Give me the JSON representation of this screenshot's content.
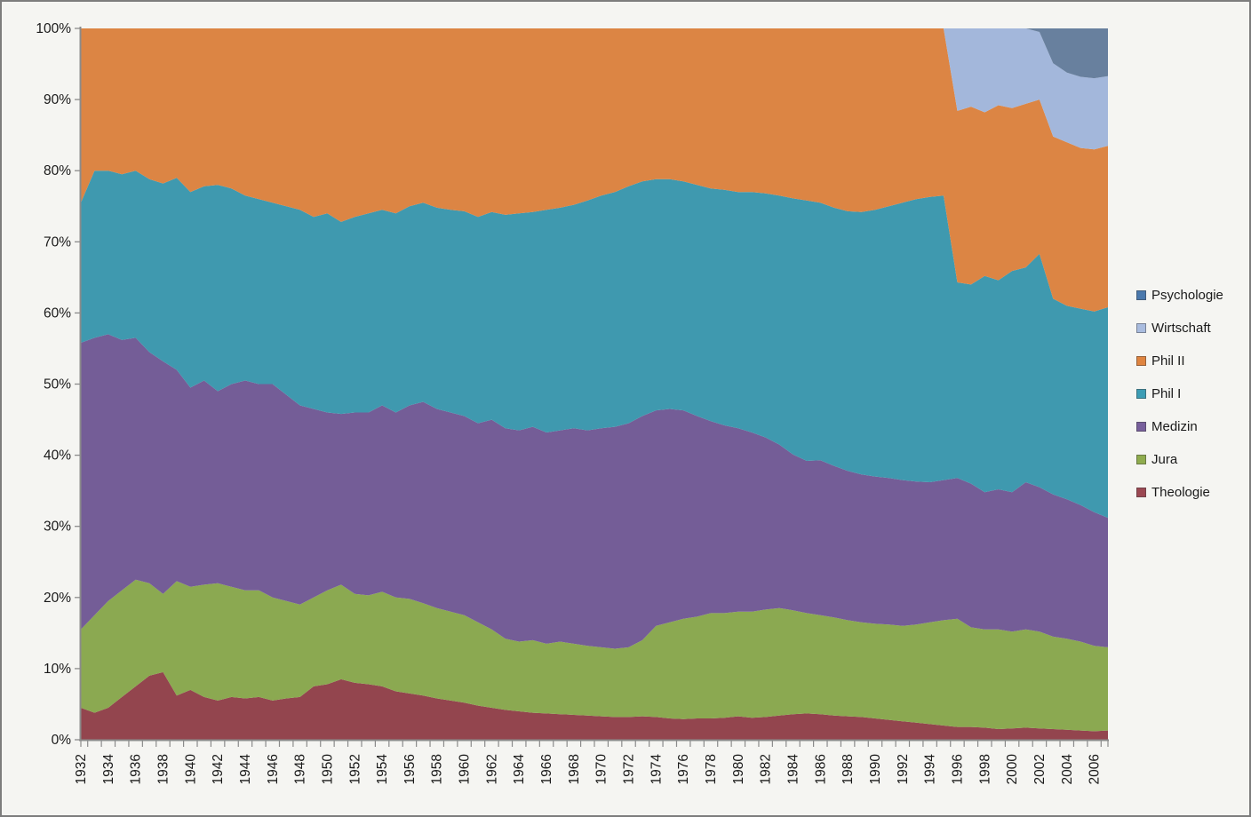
{
  "window": {
    "background": "#F5F5F2",
    "border_color": "#7D7D7D"
  },
  "chart_data": {
    "type": "area",
    "variant": "100%-stacked-area",
    "title": "",
    "xlabel": "",
    "ylabel": "",
    "grid": false,
    "legend_position": "right",
    "x_axis": {
      "range": [
        1932,
        2007
      ],
      "tick_years": [
        "1932",
        "1934",
        "1936",
        "1938",
        "1940",
        "1942",
        "1944",
        "1946",
        "1948",
        "1950",
        "1952",
        "1954",
        "1956",
        "1958",
        "1960",
        "1962",
        "1964",
        "1966",
        "1968",
        "1970",
        "1972",
        "1974",
        "1976",
        "1978",
        "1980",
        "1982",
        "1984",
        "1986",
        "1988",
        "1990",
        "1992",
        "1994",
        "1996",
        "1998",
        "2000",
        "2002",
        "2004",
        "2006"
      ]
    },
    "y_axis": {
      "range": [
        0,
        100
      ],
      "unit": "%",
      "ticks": [
        "0%",
        "10%",
        "20%",
        "30%",
        "40%",
        "50%",
        "60%",
        "70%",
        "80%",
        "90%",
        "100%"
      ]
    },
    "years": [
      1932,
      1933,
      1934,
      1935,
      1936,
      1937,
      1938,
      1939,
      1940,
      1941,
      1942,
      1943,
      1944,
      1945,
      1946,
      1947,
      1948,
      1949,
      1950,
      1951,
      1952,
      1953,
      1954,
      1955,
      1956,
      1957,
      1958,
      1959,
      1960,
      1961,
      1962,
      1963,
      1964,
      1965,
      1966,
      1967,
      1968,
      1969,
      1970,
      1971,
      1972,
      1973,
      1974,
      1975,
      1976,
      1977,
      1978,
      1979,
      1980,
      1981,
      1982,
      1983,
      1984,
      1985,
      1986,
      1987,
      1988,
      1989,
      1990,
      1991,
      1992,
      1993,
      1994,
      1995,
      1996,
      1997,
      1998,
      1999,
      2000,
      2001,
      2002,
      2003,
      2004,
      2005,
      2006,
      2007
    ],
    "series": [
      {
        "name": "Theologie",
        "color": "#93454E",
        "values": [
          4.5,
          3.8,
          4.5,
          6.0,
          7.5,
          9.0,
          9.5,
          6.2,
          7.0,
          6.0,
          5.5,
          6.0,
          5.8,
          6.0,
          5.5,
          5.8,
          6.0,
          7.5,
          7.8,
          8.5,
          8.0,
          7.8,
          7.5,
          6.8,
          6.5,
          6.2,
          5.8,
          5.5,
          5.2,
          4.8,
          4.5,
          4.2,
          4.0,
          3.8,
          3.7,
          3.6,
          3.5,
          3.4,
          3.3,
          3.2,
          3.2,
          3.3,
          3.2,
          3.0,
          2.9,
          3.0,
          3.0,
          3.1,
          3.3,
          3.1,
          3.2,
          3.4,
          3.6,
          3.7,
          3.6,
          3.4,
          3.3,
          3.2,
          3.0,
          2.8,
          2.6,
          2.4,
          2.2,
          2.0,
          1.8,
          1.8,
          1.7,
          1.5,
          1.6,
          1.7,
          1.6,
          1.5,
          1.4,
          1.3,
          1.2,
          1.3
        ]
      },
      {
        "name": "Jura",
        "color": "#8BA951",
        "values": [
          11.0,
          13.7,
          15.0,
          15.0,
          15.0,
          13.0,
          11.0,
          16.1,
          14.5,
          15.8,
          16.5,
          15.5,
          15.2,
          15.0,
          14.5,
          13.7,
          13.0,
          12.5,
          13.2,
          13.3,
          12.5,
          12.5,
          13.3,
          13.2,
          13.3,
          13.0,
          12.7,
          12.5,
          12.3,
          11.7,
          11.0,
          10.0,
          9.8,
          10.2,
          9.8,
          10.2,
          10.0,
          9.8,
          9.7,
          9.6,
          9.8,
          10.7,
          12.8,
          13.5,
          14.1,
          14.3,
          14.8,
          14.7,
          14.7,
          14.9,
          15.1,
          15.1,
          14.6,
          14.1,
          13.9,
          13.8,
          13.5,
          13.3,
          13.3,
          13.4,
          13.4,
          13.8,
          14.3,
          14.8,
          15.2,
          14.0,
          13.8,
          14.0,
          13.6,
          13.8,
          13.6,
          13.0,
          12.8,
          12.5,
          12.0,
          11.7
        ]
      },
      {
        "name": "Medizin",
        "color": "#745D97",
        "values": [
          40.3,
          39.0,
          37.5,
          35.2,
          34.0,
          32.5,
          32.7,
          29.7,
          28.0,
          28.7,
          27.0,
          28.5,
          29.5,
          29.0,
          30.0,
          29.0,
          28.0,
          26.5,
          25.0,
          24.0,
          25.5,
          25.7,
          26.2,
          26.0,
          27.2,
          28.3,
          28.0,
          28.0,
          28.0,
          28.0,
          29.5,
          29.6,
          29.7,
          30.0,
          29.7,
          29.7,
          30.3,
          30.3,
          30.8,
          31.2,
          31.5,
          31.5,
          30.3,
          30.0,
          29.3,
          28.2,
          27.0,
          26.4,
          25.8,
          25.2,
          24.2,
          23.0,
          21.9,
          21.4,
          21.8,
          21.3,
          21.0,
          20.8,
          20.7,
          20.6,
          20.5,
          20.1,
          19.7,
          19.7,
          19.8,
          20.2,
          19.3,
          19.7,
          19.6,
          20.7,
          20.3,
          20.0,
          19.6,
          19.2,
          18.8,
          18.2
        ]
      },
      {
        "name": "Phil I",
        "color": "#3F99AF",
        "values": [
          19.7,
          23.5,
          23.0,
          23.3,
          23.5,
          24.3,
          25.0,
          27.0,
          27.5,
          27.3,
          29.0,
          27.5,
          26.0,
          26.0,
          25.5,
          26.5,
          27.5,
          27.0,
          28.0,
          27.0,
          27.5,
          28.0,
          27.5,
          28.0,
          28.0,
          28.0,
          28.3,
          28.5,
          28.8,
          29.0,
          29.2,
          30.0,
          30.5,
          30.2,
          31.3,
          31.3,
          31.4,
          32.3,
          32.7,
          33.0,
          33.3,
          33.0,
          32.5,
          32.3,
          32.2,
          32.5,
          32.7,
          33.1,
          33.2,
          33.8,
          34.3,
          35.0,
          36.0,
          36.6,
          36.2,
          36.3,
          36.5,
          36.9,
          37.5,
          38.2,
          39.0,
          39.7,
          40.1,
          40.0,
          27.5,
          28.0,
          30.4,
          29.4,
          31.1,
          30.2,
          32.8,
          27.5,
          27.2,
          27.6,
          28.2,
          29.6
        ]
      },
      {
        "name": "Phil II",
        "color": "#DC8544",
        "values": [
          24.5,
          20.0,
          20.0,
          20.5,
          20.0,
          21.2,
          21.8,
          21.0,
          23.0,
          22.2,
          22.0,
          22.5,
          23.5,
          24.0,
          24.5,
          25.0,
          25.5,
          26.5,
          26.0,
          27.2,
          26.5,
          26.0,
          25.5,
          26.0,
          25.0,
          24.5,
          25.2,
          25.5,
          25.7,
          26.5,
          25.8,
          26.2,
          26.0,
          25.8,
          25.5,
          25.2,
          24.8,
          24.2,
          23.5,
          23.0,
          22.2,
          21.5,
          21.2,
          21.2,
          21.5,
          22.0,
          22.5,
          22.7,
          23.0,
          23.0,
          23.2,
          23.5,
          23.9,
          24.2,
          24.5,
          25.2,
          25.7,
          25.8,
          25.5,
          25.0,
          24.5,
          24.0,
          23.7,
          23.5,
          24.1,
          25.0,
          23.0,
          24.6,
          22.9,
          23.0,
          21.7,
          22.8,
          23.0,
          22.6,
          22.8,
          22.7
        ]
      },
      {
        "name": "Wirtschaft",
        "color": "#A3B7DB",
        "values": [
          0,
          0,
          0,
          0,
          0,
          0,
          0,
          0,
          0,
          0,
          0,
          0,
          0,
          0,
          0,
          0,
          0,
          0,
          0,
          0,
          0,
          0,
          0,
          0,
          0,
          0,
          0,
          0,
          0,
          0,
          0,
          0,
          0,
          0,
          0,
          0,
          0,
          0,
          0,
          0,
          0,
          0,
          0,
          0,
          0,
          0,
          0,
          0,
          0,
          0,
          0,
          0,
          0,
          0,
          0,
          0,
          0,
          0,
          0,
          0,
          0,
          0,
          0,
          0,
          11.6,
          11.0,
          11.8,
          10.8,
          11.2,
          10.6,
          9.5,
          10.3,
          9.8,
          10.0,
          10.0,
          9.8
        ]
      },
      {
        "name": "Psychologie",
        "color": "#68809E",
        "values": [
          0,
          0,
          0,
          0,
          0,
          0,
          0,
          0,
          0,
          0,
          0,
          0,
          0,
          0,
          0,
          0,
          0,
          0,
          0,
          0,
          0,
          0,
          0,
          0,
          0,
          0,
          0,
          0,
          0,
          0,
          0,
          0,
          0,
          0,
          0,
          0,
          0,
          0,
          0,
          0,
          0,
          0,
          0,
          0,
          0,
          0,
          0,
          0,
          0,
          0,
          0,
          0,
          0,
          0,
          0,
          0,
          0,
          0,
          0,
          0,
          0,
          0,
          0,
          0,
          0,
          0,
          0,
          0,
          0,
          0,
          0.5,
          4.9,
          6.2,
          6.8,
          7.0,
          6.7
        ]
      }
    ]
  },
  "legend": {
    "items": [
      {
        "label": "Psychologie",
        "color": "#4A79AD"
      },
      {
        "label": "Wirtschaft",
        "color": "#A9BCDF"
      },
      {
        "label": "Phil II",
        "color": "#DF8440"
      },
      {
        "label": "Phil I",
        "color": "#3C9DB5"
      },
      {
        "label": "Medizin",
        "color": "#775F9C"
      },
      {
        "label": "Jura",
        "color": "#8FAC4E"
      },
      {
        "label": "Theologie",
        "color": "#9B4852"
      }
    ]
  }
}
